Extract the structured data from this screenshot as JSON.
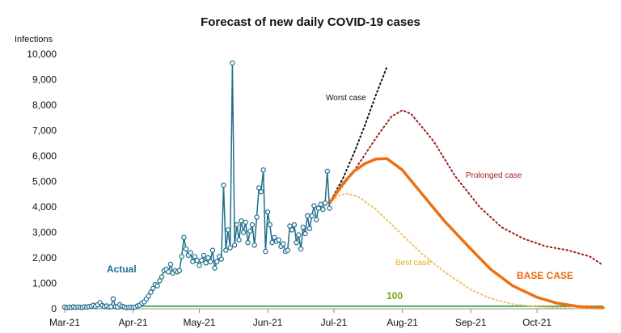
{
  "chart_data": {
    "type": "line",
    "title": "Forecast of new daily COVID-19 cases",
    "ylabel": "Infections",
    "xlabel": "",
    "ylim": [
      0,
      10000
    ],
    "xlim": [
      "2021-03-01",
      "2021-10-31"
    ],
    "grid": false,
    "y_ticks": [
      0,
      1000,
      2000,
      3000,
      4000,
      5000,
      6000,
      7000,
      8000,
      9000,
      10000
    ],
    "y_tick_labels": [
      "0",
      "1,000",
      "2,000",
      "3,000",
      "4,000",
      "5,000",
      "6,000",
      "7,000",
      "8,000",
      "9,000",
      "10,000"
    ],
    "x_ticks": [
      "2021-03-01",
      "2021-04-01",
      "2021-05-01",
      "2021-06-01",
      "2021-07-01",
      "2021-08-01",
      "2021-09-01",
      "2021-10-01"
    ],
    "x_tick_labels": [
      "Mar-21",
      "Apr-21",
      "May-21",
      "Jun-21",
      "Jul-21",
      "Aug-21",
      "Sep-21",
      "Oct-21"
    ],
    "series": [
      {
        "name": "Actual",
        "label_color": "#1f6e8c",
        "color": "#1f6e8c",
        "style": "line-markers",
        "points": [
          [
            "2021-03-01",
            70
          ],
          [
            "2021-03-02",
            40
          ],
          [
            "2021-03-03",
            60
          ],
          [
            "2021-03-04",
            50
          ],
          [
            "2021-03-05",
            80
          ],
          [
            "2021-03-06",
            50
          ],
          [
            "2021-03-07",
            70
          ],
          [
            "2021-03-08",
            60
          ],
          [
            "2021-03-09",
            50
          ],
          [
            "2021-03-10",
            80
          ],
          [
            "2021-03-11",
            60
          ],
          [
            "2021-03-12",
            90
          ],
          [
            "2021-03-13",
            100
          ],
          [
            "2021-03-14",
            140
          ],
          [
            "2021-03-15",
            100
          ],
          [
            "2021-03-16",
            160
          ],
          [
            "2021-03-17",
            240
          ],
          [
            "2021-03-18",
            130
          ],
          [
            "2021-03-19",
            90
          ],
          [
            "2021-03-20",
            110
          ],
          [
            "2021-03-21",
            70
          ],
          [
            "2021-03-22",
            80
          ],
          [
            "2021-03-23",
            390
          ],
          [
            "2021-03-24",
            90
          ],
          [
            "2021-03-25",
            70
          ],
          [
            "2021-03-26",
            160
          ],
          [
            "2021-03-27",
            100
          ],
          [
            "2021-03-28",
            70
          ],
          [
            "2021-03-29",
            40
          ],
          [
            "2021-03-30",
            50
          ],
          [
            "2021-03-31",
            60
          ],
          [
            "2021-04-01",
            50
          ],
          [
            "2021-04-02",
            70
          ],
          [
            "2021-04-03",
            110
          ],
          [
            "2021-04-04",
            140
          ],
          [
            "2021-04-05",
            220
          ],
          [
            "2021-04-06",
            270
          ],
          [
            "2021-04-07",
            380
          ],
          [
            "2021-04-08",
            500
          ],
          [
            "2021-04-09",
            650
          ],
          [
            "2021-04-10",
            800
          ],
          [
            "2021-04-11",
            950
          ],
          [
            "2021-04-12",
            900
          ],
          [
            "2021-04-13",
            1100
          ],
          [
            "2021-04-14",
            1250
          ],
          [
            "2021-04-15",
            1500
          ],
          [
            "2021-04-16",
            1550
          ],
          [
            "2021-04-17",
            1450
          ],
          [
            "2021-04-18",
            1750
          ],
          [
            "2021-04-19",
            1400
          ],
          [
            "2021-04-20",
            1500
          ],
          [
            "2021-04-21",
            1450
          ],
          [
            "2021-04-22",
            1500
          ],
          [
            "2021-04-23",
            2050
          ],
          [
            "2021-04-24",
            2800
          ],
          [
            "2021-04-25",
            2350
          ],
          [
            "2021-04-26",
            2100
          ],
          [
            "2021-04-27",
            2200
          ],
          [
            "2021-04-28",
            1850
          ],
          [
            "2021-04-29",
            2050
          ],
          [
            "2021-04-30",
            1900
          ],
          [
            "2021-05-01",
            1700
          ],
          [
            "2021-05-02",
            1900
          ],
          [
            "2021-05-03",
            2100
          ],
          [
            "2021-05-04",
            1800
          ],
          [
            "2021-05-05",
            2000
          ],
          [
            "2021-05-06",
            1850
          ],
          [
            "2021-05-07",
            2300
          ],
          [
            "2021-05-08",
            1600
          ],
          [
            "2021-05-09",
            1850
          ],
          [
            "2021-05-10",
            2050
          ],
          [
            "2021-05-11",
            1950
          ],
          [
            "2021-05-12",
            4850
          ],
          [
            "2021-05-13",
            2300
          ],
          [
            "2021-05-14",
            3100
          ],
          [
            "2021-05-15",
            2400
          ],
          [
            "2021-05-16",
            9650
          ],
          [
            "2021-05-17",
            2500
          ],
          [
            "2021-05-18",
            3300
          ],
          [
            "2021-05-19",
            2700
          ],
          [
            "2021-05-20",
            3450
          ],
          [
            "2021-05-21",
            3000
          ],
          [
            "2021-05-22",
            3400
          ],
          [
            "2021-05-23",
            2600
          ],
          [
            "2021-05-24",
            3050
          ],
          [
            "2021-05-25",
            3300
          ],
          [
            "2021-05-26",
            2500
          ],
          [
            "2021-05-27",
            3600
          ],
          [
            "2021-05-28",
            4750
          ],
          [
            "2021-05-29",
            4600
          ],
          [
            "2021-05-30",
            5450
          ],
          [
            "2021-05-31",
            2250
          ],
          [
            "2021-06-01",
            3800
          ],
          [
            "2021-06-02",
            3300
          ],
          [
            "2021-06-03",
            2600
          ],
          [
            "2021-06-04",
            2800
          ],
          [
            "2021-06-05",
            2650
          ],
          [
            "2021-06-06",
            2700
          ],
          [
            "2021-06-07",
            2450
          ],
          [
            "2021-06-08",
            2550
          ],
          [
            "2021-06-09",
            2250
          ],
          [
            "2021-06-10",
            2300
          ],
          [
            "2021-06-11",
            3250
          ],
          [
            "2021-06-12",
            3100
          ],
          [
            "2021-06-13",
            3300
          ],
          [
            "2021-06-14",
            2600
          ],
          [
            "2021-06-15",
            2900
          ],
          [
            "2021-06-16",
            2350
          ],
          [
            "2021-06-17",
            3200
          ],
          [
            "2021-06-18",
            2950
          ],
          [
            "2021-06-19",
            3650
          ],
          [
            "2021-06-20",
            3150
          ],
          [
            "2021-06-21",
            3650
          ],
          [
            "2021-06-22",
            4050
          ],
          [
            "2021-06-23",
            3500
          ],
          [
            "2021-06-24",
            3950
          ],
          [
            "2021-06-25",
            4100
          ],
          [
            "2021-06-26",
            3900
          ],
          [
            "2021-06-27",
            4150
          ],
          [
            "2021-06-28",
            5400
          ],
          [
            "2021-06-29",
            3950
          ]
        ]
      },
      {
        "name": "Worst case",
        "label_color": "#111111",
        "color": "#111111",
        "style": "dotted",
        "points": [
          [
            "2021-06-29",
            4150
          ],
          [
            "2021-07-05",
            5100
          ],
          [
            "2021-07-10",
            6100
          ],
          [
            "2021-07-15",
            7200
          ],
          [
            "2021-07-20",
            8400
          ],
          [
            "2021-07-25",
            9500
          ]
        ]
      },
      {
        "name": "Prolonged case",
        "label_color": "#9e1b1b",
        "color": "#a31515",
        "style": "dotted",
        "points": [
          [
            "2021-06-29",
            4150
          ],
          [
            "2021-07-10",
            5400
          ],
          [
            "2021-07-20",
            6700
          ],
          [
            "2021-07-27",
            7550
          ],
          [
            "2021-08-01",
            7800
          ],
          [
            "2021-08-05",
            7650
          ],
          [
            "2021-08-15",
            6600
          ],
          [
            "2021-08-25",
            5200
          ],
          [
            "2021-09-05",
            4000
          ],
          [
            "2021-09-15",
            3200
          ],
          [
            "2021-09-25",
            2750
          ],
          [
            "2021-10-05",
            2450
          ],
          [
            "2021-10-15",
            2300
          ],
          [
            "2021-10-25",
            2050
          ],
          [
            "2021-10-31",
            1700
          ]
        ]
      },
      {
        "name": "BASE CASE",
        "label_color": "#e8690b",
        "color": "#ec7014",
        "style": "solid-thick",
        "points": [
          [
            "2021-06-29",
            4150
          ],
          [
            "2021-07-05",
            4900
          ],
          [
            "2021-07-10",
            5400
          ],
          [
            "2021-07-15",
            5700
          ],
          [
            "2021-07-20",
            5880
          ],
          [
            "2021-07-25",
            5900
          ],
          [
            "2021-08-01",
            5450
          ],
          [
            "2021-08-10",
            4500
          ],
          [
            "2021-08-20",
            3450
          ],
          [
            "2021-09-01",
            2350
          ],
          [
            "2021-09-10",
            1550
          ],
          [
            "2021-09-20",
            900
          ],
          [
            "2021-10-01",
            450
          ],
          [
            "2021-10-10",
            220
          ],
          [
            "2021-10-20",
            90
          ],
          [
            "2021-10-31",
            40
          ]
        ]
      },
      {
        "name": "Best case",
        "label_color": "#e7a91c",
        "color": "#f2c063",
        "style": "dotted",
        "points": [
          [
            "2021-06-29",
            4150
          ],
          [
            "2021-07-03",
            4450
          ],
          [
            "2021-07-07",
            4520
          ],
          [
            "2021-07-12",
            4400
          ],
          [
            "2021-07-20",
            3900
          ],
          [
            "2021-08-01",
            2900
          ],
          [
            "2021-08-10",
            2150
          ],
          [
            "2021-08-20",
            1450
          ],
          [
            "2021-09-01",
            750
          ],
          [
            "2021-09-10",
            400
          ],
          [
            "2021-09-20",
            180
          ],
          [
            "2021-10-01",
            80
          ],
          [
            "2021-10-15",
            30
          ],
          [
            "2021-10-31",
            10
          ]
        ]
      },
      {
        "name": "100",
        "label_color": "#7aa51b",
        "color": "#3aa04a",
        "style": "solid-thin",
        "points": [
          [
            "2021-03-01",
            100
          ],
          [
            "2021-10-31",
            100
          ]
        ]
      }
    ]
  }
}
